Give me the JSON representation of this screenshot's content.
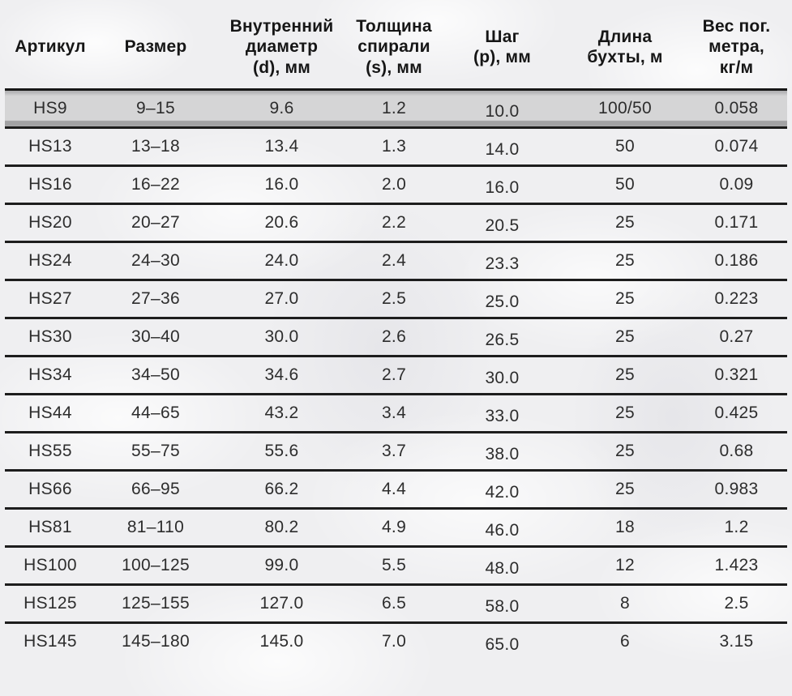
{
  "colors": {
    "page_background": "#efeff1",
    "separator_line": "#1d1d1d",
    "header_text": "#161616",
    "cell_text": "#2d2d2d",
    "highlight_row_background": "#d5d5d6",
    "highlight_row_edge_top": "#b2b2b4",
    "highlight_row_edge_bottom": "#a2a2a4"
  },
  "table": {
    "columns": [
      {
        "id": "article",
        "label": "Артикул"
      },
      {
        "id": "size",
        "label": "Размер"
      },
      {
        "id": "inner-diameter",
        "label": "Внутренний\nдиаметр\n(d), мм"
      },
      {
        "id": "spiral-thickness",
        "label": "Толщина\nспирали\n(s), мм"
      },
      {
        "id": "pitch",
        "label": "Шаг\n(p), мм"
      },
      {
        "id": "coil-length",
        "label": "Длина\nбухты, м"
      },
      {
        "id": "weight",
        "label": "Вес пог.\nметра,\nкг/м"
      }
    ],
    "rows": [
      {
        "highlighted": true,
        "cells": [
          "HS9",
          "9–15",
          "9.6",
          "1.2",
          "10.0",
          "100/50",
          "0.058"
        ]
      },
      {
        "highlighted": false,
        "cells": [
          "HS13",
          "13–18",
          "13.4",
          "1.3",
          "14.0",
          "50",
          "0.074"
        ]
      },
      {
        "highlighted": false,
        "cells": [
          "HS16",
          "16–22",
          "16.0",
          "2.0",
          "16.0",
          "50",
          "0.09"
        ]
      },
      {
        "highlighted": false,
        "cells": [
          "HS20",
          "20–27",
          "20.6",
          "2.2",
          "20.5",
          "25",
          "0.171"
        ]
      },
      {
        "highlighted": false,
        "cells": [
          "HS24",
          "24–30",
          "24.0",
          "2.4",
          "23.3",
          "25",
          "0.186"
        ]
      },
      {
        "highlighted": false,
        "cells": [
          "HS27",
          "27–36",
          "27.0",
          "2.5",
          "25.0",
          "25",
          "0.223"
        ]
      },
      {
        "highlighted": false,
        "cells": [
          "HS30",
          "30–40",
          "30.0",
          "2.6",
          "26.5",
          "25",
          "0.27"
        ]
      },
      {
        "highlighted": false,
        "cells": [
          "HS34",
          "34–50",
          "34.6",
          "2.7",
          "30.0",
          "25",
          "0.321"
        ]
      },
      {
        "highlighted": false,
        "cells": [
          "HS44",
          "44–65",
          "43.2",
          "3.4",
          "33.0",
          "25",
          "0.425"
        ]
      },
      {
        "highlighted": false,
        "cells": [
          "HS55",
          "55–75",
          "55.6",
          "3.7",
          "38.0",
          "25",
          "0.68"
        ]
      },
      {
        "highlighted": false,
        "cells": [
          "HS66",
          "66–95",
          "66.2",
          "4.4",
          "42.0",
          "25",
          "0.983"
        ]
      },
      {
        "highlighted": false,
        "cells": [
          "HS81",
          "81–110",
          "80.2",
          "4.9",
          "46.0",
          "18",
          "1.2"
        ]
      },
      {
        "highlighted": false,
        "cells": [
          "HS100",
          "100–125",
          "99.0",
          "5.5",
          "48.0",
          "12",
          "1.423"
        ]
      },
      {
        "highlighted": false,
        "cells": [
          "HS125",
          "125–155",
          "127.0",
          "6.5",
          "58.0",
          "8",
          "2.5"
        ]
      },
      {
        "highlighted": false,
        "cells": [
          "HS145",
          "145–180",
          "145.0",
          "7.0",
          "65.0",
          "6",
          "3.15"
        ]
      }
    ]
  }
}
